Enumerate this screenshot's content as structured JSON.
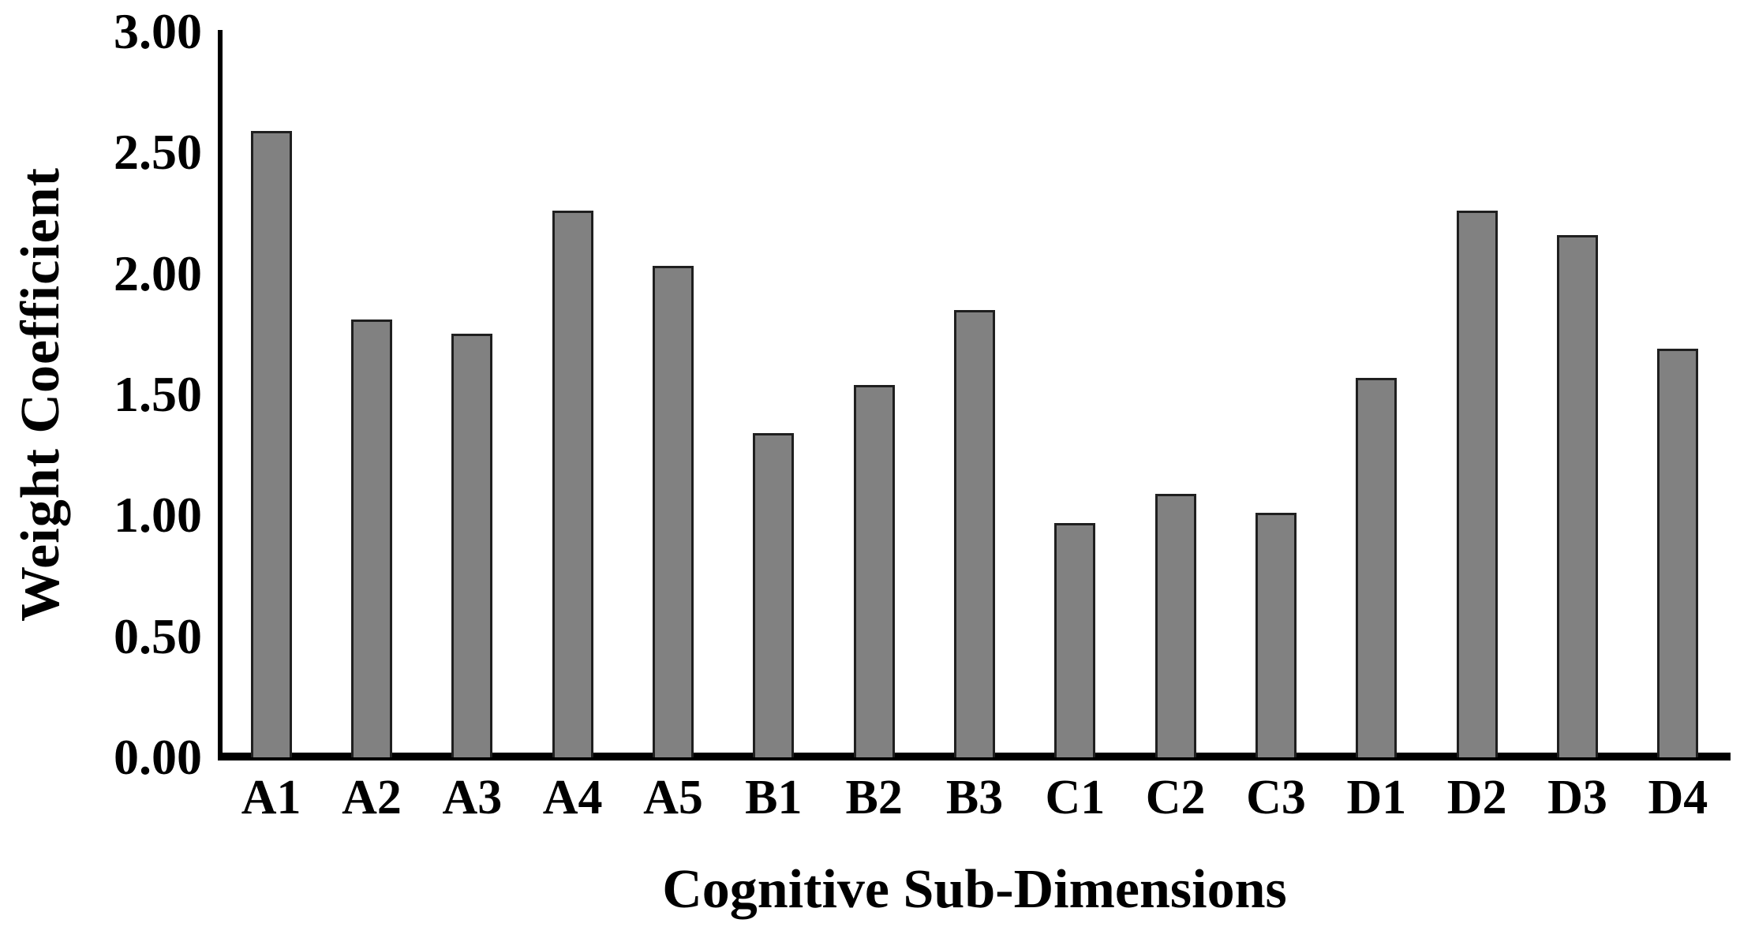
{
  "chart_data": {
    "type": "bar",
    "title": "",
    "xlabel": "Cognitive Sub-Dimensions",
    "ylabel": "Weight Coefficient",
    "categories": [
      "A1",
      "A2",
      "A3",
      "A4",
      "A5",
      "B1",
      "B2",
      "B3",
      "C1",
      "C2",
      "C3",
      "D1",
      "D2",
      "D3",
      "D4"
    ],
    "values": [
      2.59,
      1.81,
      1.75,
      2.26,
      2.03,
      1.34,
      1.54,
      1.85,
      0.97,
      1.09,
      1.01,
      1.57,
      2.26,
      2.16,
      1.69
    ],
    "ylim": [
      0,
      3
    ],
    "ytick_step": 0.5,
    "ytick_labels": [
      "3.00",
      "2.50",
      "2.00",
      "1.50",
      "1.00",
      "0.50",
      "0.00"
    ],
    "grid": false,
    "legend": null,
    "colors": {
      "background": "#ffffff",
      "bar_fill": "#818181",
      "bar_border": "#1f1f1f",
      "axis": "#000000",
      "text": "#000000"
    }
  }
}
